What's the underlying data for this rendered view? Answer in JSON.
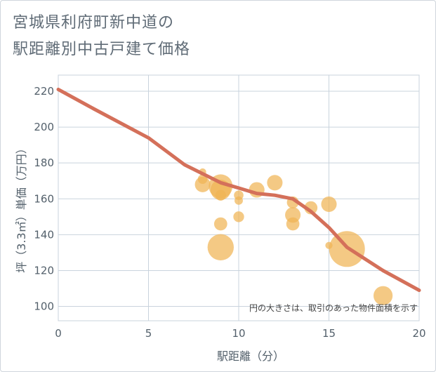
{
  "title_line1": "宮城県利府町新中道の",
  "title_line2": "駅距離別中古戸建て価格",
  "chart_data": {
    "type": "scatter",
    "xlabel": "駅距離（分）",
    "ylabel": "坪（3.3㎡）単価（万円）",
    "xlim": [
      0,
      20
    ],
    "ylim": [
      92,
      229
    ],
    "xticks": [
      0,
      5,
      10,
      15,
      20
    ],
    "yticks": [
      100,
      120,
      140,
      160,
      180,
      200,
      220
    ],
    "grid": true,
    "annotation": "円の大きさは、取引のあった物件面積を示す",
    "colors": {
      "bubble": "#f0b455",
      "line": "#d4705a",
      "grid": "#c9d3dd",
      "axis": "#53606b"
    },
    "points": [
      {
        "x": 8,
        "y": 168,
        "size": 1.3
      },
      {
        "x": 8,
        "y": 171,
        "size": 0.8
      },
      {
        "x": 8,
        "y": 175,
        "size": 0.6
      },
      {
        "x": 9,
        "y": 167,
        "size": 2.0
      },
      {
        "x": 9,
        "y": 165,
        "size": 1.7
      },
      {
        "x": 9,
        "y": 162,
        "size": 0.9
      },
      {
        "x": 9,
        "y": 146,
        "size": 1.1
      },
      {
        "x": 9,
        "y": 133,
        "size": 2.2
      },
      {
        "x": 10,
        "y": 162,
        "size": 0.8
      },
      {
        "x": 10,
        "y": 159,
        "size": 0.7
      },
      {
        "x": 10,
        "y": 150,
        "size": 0.9
      },
      {
        "x": 11,
        "y": 165,
        "size": 1.3
      },
      {
        "x": 12,
        "y": 169,
        "size": 1.3
      },
      {
        "x": 13,
        "y": 158,
        "size": 1.0
      },
      {
        "x": 13,
        "y": 151,
        "size": 1.3
      },
      {
        "x": 13,
        "y": 146,
        "size": 1.1
      },
      {
        "x": 14,
        "y": 155,
        "size": 1.1
      },
      {
        "x": 15,
        "y": 157,
        "size": 1.3
      },
      {
        "x": 15,
        "y": 134,
        "size": 0.6
      },
      {
        "x": 16,
        "y": 132,
        "size": 3.0
      },
      {
        "x": 18,
        "y": 106,
        "size": 1.6
      }
    ],
    "trend": {
      "x": [
        0,
        2,
        5,
        7,
        9,
        10,
        11,
        12,
        13,
        14,
        15,
        16,
        18,
        20
      ],
      "y": [
        221,
        210,
        194,
        179,
        169,
        166,
        163,
        162,
        160,
        153,
        144,
        133,
        120,
        109
      ]
    }
  }
}
